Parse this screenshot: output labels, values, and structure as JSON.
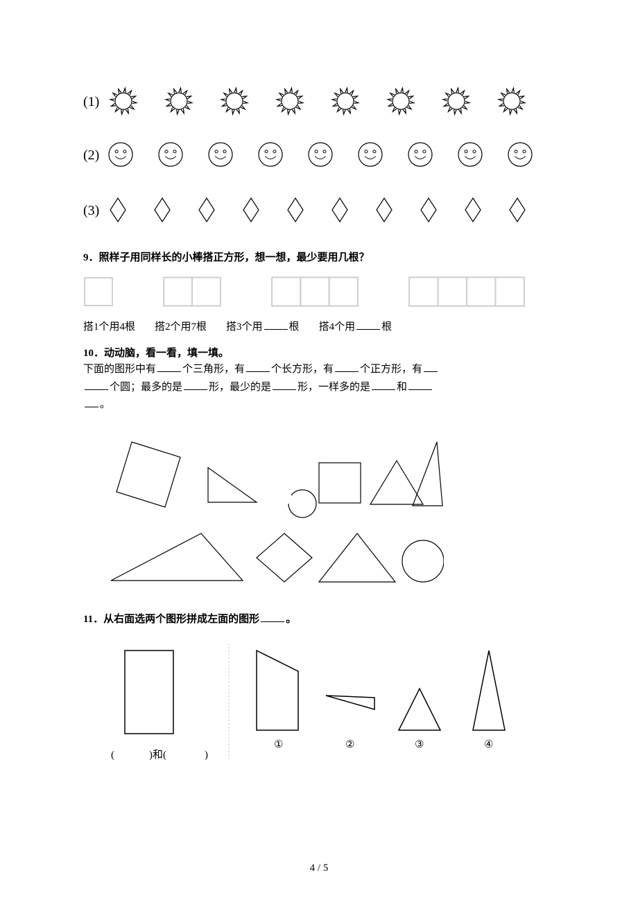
{
  "page": {
    "background": "#ffffff",
    "text_color": "#000000",
    "footer": "4 / 5"
  },
  "q8_patterns": {
    "items_per_row": {
      "suns": 8,
      "smiles": 9,
      "diamonds": 10
    },
    "row_labels": [
      "(1)",
      "(2)",
      "(3)"
    ],
    "stroke": "#000000",
    "fill": "#ffffff"
  },
  "q9": {
    "title": "9．照样子用同样长的小棒搭正方形，想一想，最少要用几根？",
    "captions": {
      "c1": "搭1个用4根",
      "c2": "搭2个用7根",
      "c3_pre": "搭3个用",
      "c3_post": "根",
      "c4_pre": "搭4个用",
      "c4_post": "根"
    },
    "groups": [
      {
        "squares": 1,
        "cell": 40,
        "stroke": "#cfcfcf"
      },
      {
        "squares": 2,
        "cell": 40,
        "stroke": "#cfcfcf"
      },
      {
        "squares": 3,
        "cell": 40,
        "stroke": "#cfcfcf"
      },
      {
        "squares": 4,
        "cell": 40,
        "stroke": "#cfcfcf"
      }
    ]
  },
  "q10": {
    "title": "10．动动脑，看一看，填一填。",
    "line1a": "下面的图形中有",
    "line1b": "个三角形，有",
    "line1c": "个长方形，有",
    "line1d": "个正方形，有",
    "line2a": "个圆；最多的是",
    "line2b": "形，最少的是",
    "line2c": "形，一样多的是",
    "line2d": "和",
    "line2e": "。",
    "shapes_stroke": "#000000",
    "shapes_fill": "#ffffff"
  },
  "q11": {
    "title_pre": "11．从右面选两个图形拼成左面的图形",
    "title_post": "。",
    "left_label_pre": "(",
    "left_label_mid1": ")和(",
    "left_label_mid2": ")",
    "labels": [
      "①",
      "②",
      "③",
      "④"
    ],
    "stroke": "#000000",
    "fill": "#ffffff",
    "divider_stroke": "#bbbbbb"
  }
}
